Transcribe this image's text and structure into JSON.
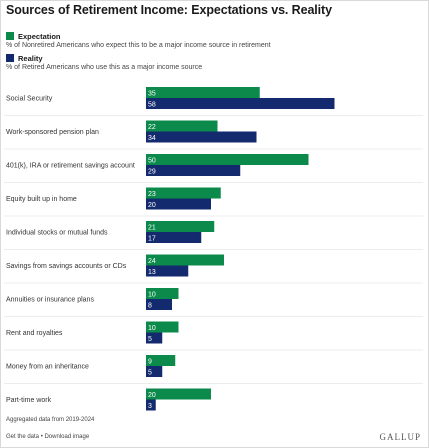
{
  "colors": {
    "expectation": "#0b8a4b",
    "reality": "#142a6e",
    "divider": "#d9d9d9"
  },
  "chart_data": {
    "type": "bar",
    "orientation": "horizontal",
    "title": "Sources of Retirement Income: Expectations vs. Reality",
    "categories": [
      "Social Security",
      "Work-sponsored pension plan",
      "401(k), IRA or retirement savings account",
      "Equity built up in home",
      "Individual stocks or mutual funds",
      "Savings from savings accounts or CDs",
      "Annuities or insurance plans",
      "Rent and royalties",
      "Money from an inheritance",
      "Part-time work"
    ],
    "series": [
      {
        "name": "Expectation",
        "description": "% of Nonretired Americans who expect this to be a major income source in retirement",
        "color": "#0b8a4b",
        "values": [
          35,
          22,
          50,
          23,
          21,
          24,
          10,
          10,
          9,
          20
        ]
      },
      {
        "name": "Reality",
        "description": "% of Retired Americans who use this as a major income source",
        "color": "#142a6e",
        "values": [
          58,
          34,
          29,
          20,
          17,
          13,
          8,
          5,
          5,
          3
        ]
      }
    ],
    "xlim": [
      0,
      60
    ],
    "grid": false,
    "legend_position": "top-left",
    "footnote": "Aggregated data from 2019-2024"
  },
  "links": {
    "get_data": "Get the data",
    "separator": " • ",
    "download": "Download image"
  },
  "brand": "GALLUP"
}
